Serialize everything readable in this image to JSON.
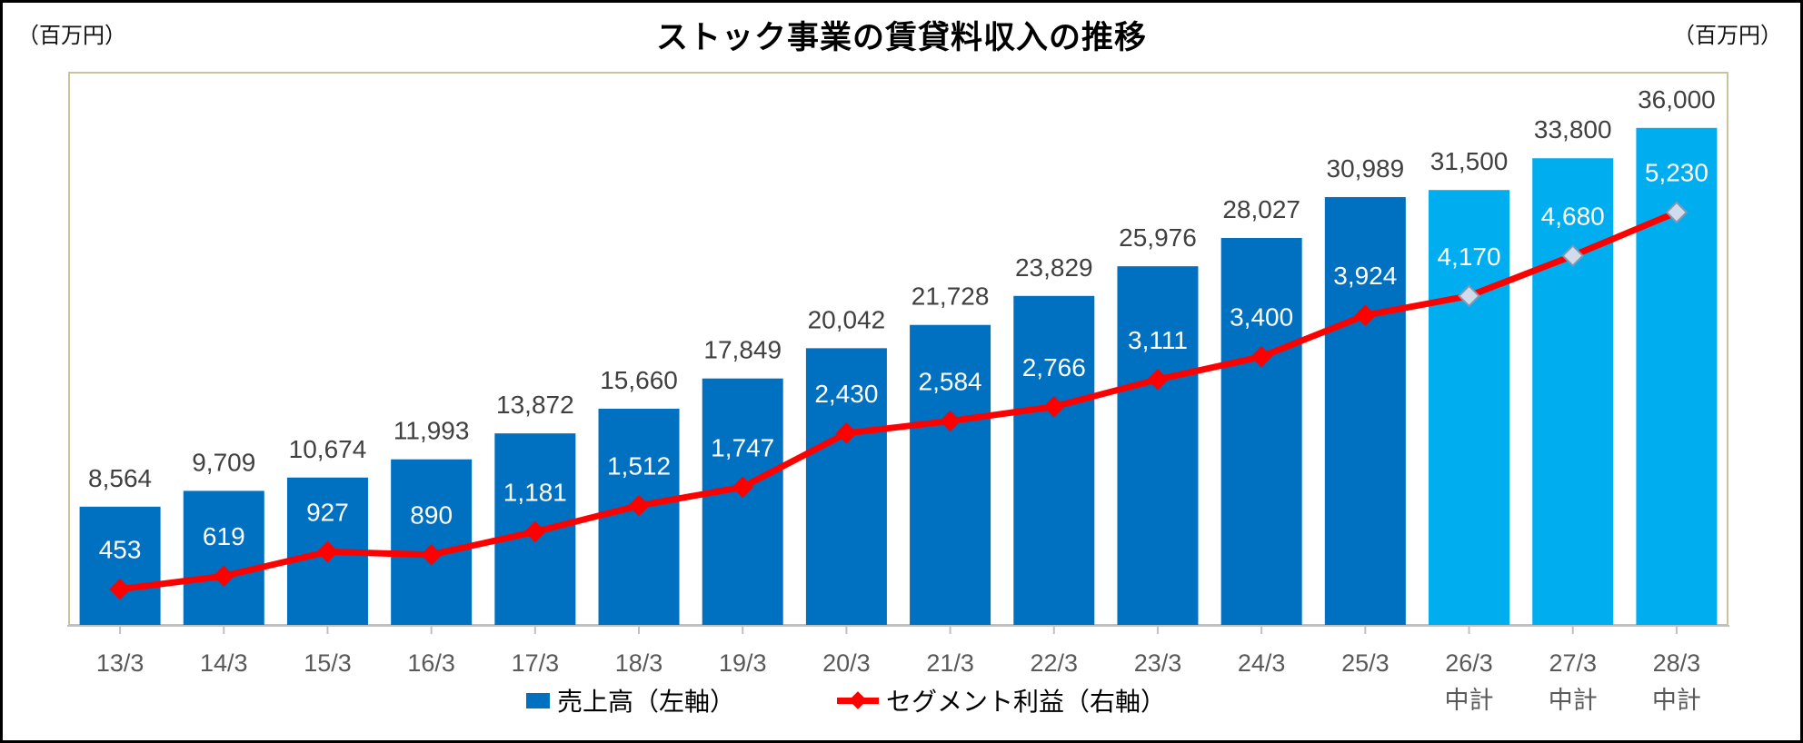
{
  "title": "ストック事業の賃貸料収入の推移",
  "left_unit": "（百万円）",
  "right_unit": "（百万円）",
  "legend": [
    {
      "label": "売上高（左軸）"
    },
    {
      "label": "セグメント利益（右軸）"
    }
  ],
  "colors": {
    "bar_actual": "#0070C0",
    "bar_forecast": "#00AEEF",
    "line": "#FF0000",
    "forecast_marker_fill": "#D0DCEB",
    "forecast_marker_stroke": "#8496B0",
    "bar_value_label": "#404040",
    "line_value_label": "#FFFFFF",
    "x_label": "#595959",
    "plot_border": "#CBC39C",
    "axis_line": "#C0C0C0"
  },
  "chart_data": {
    "type": "bar+line",
    "title": "ストック事業の賃貸料収入の推移",
    "categories": [
      "13/3",
      "14/3",
      "15/3",
      "16/3",
      "17/3",
      "18/3",
      "19/3",
      "20/3",
      "21/3",
      "22/3",
      "23/3",
      "24/3",
      "25/3",
      "26/3",
      "27/3",
      "28/3"
    ],
    "category_sublabels": [
      "",
      "",
      "",
      "",
      "",
      "",
      "",
      "",
      "",
      "",
      "",
      "",
      "",
      "中計",
      "中計",
      "中計"
    ],
    "forecast_start_index": 13,
    "series": [
      {
        "name": "売上高（左軸）",
        "type": "bar",
        "axis": "left",
        "values": [
          8564,
          9709,
          10674,
          11993,
          13872,
          15660,
          17849,
          20042,
          21728,
          23829,
          25976,
          28027,
          30989,
          31500,
          33800,
          36000
        ]
      },
      {
        "name": "セグメント利益（右軸）",
        "type": "line",
        "axis": "right",
        "marker": "diamond",
        "values": [
          453,
          619,
          927,
          890,
          1181,
          1512,
          1747,
          2430,
          2584,
          2766,
          3111,
          3400,
          3924,
          4170,
          4680,
          5230
        ]
      }
    ],
    "left_axis": {
      "min": 0,
      "max": 40000,
      "unit": "百万円",
      "tick_labels_visible": false
    },
    "right_axis": {
      "min": 0,
      "max": 7000,
      "unit": "百万円",
      "tick_labels_visible": false
    },
    "grid": false,
    "legend_position": "bottom",
    "data_labels": "all"
  }
}
